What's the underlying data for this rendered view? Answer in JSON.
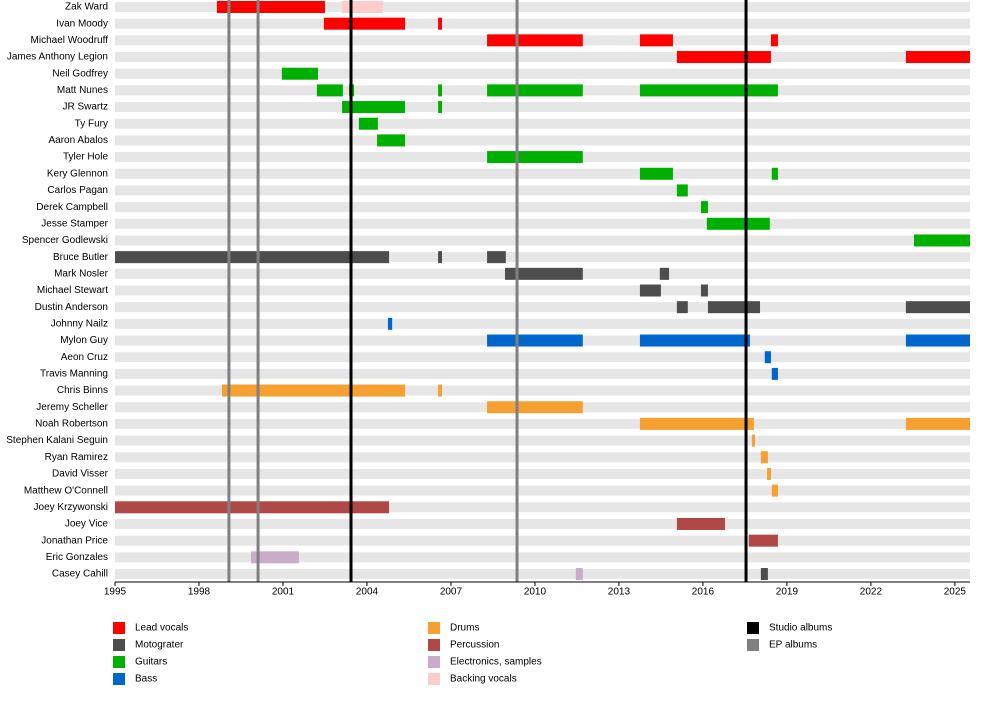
{
  "chart_data": {
    "type": "timeline",
    "xlim": [
      1995,
      2025.54
    ],
    "xticks": [
      1995,
      1998,
      2001,
      2004,
      2007,
      2010,
      2013,
      2016,
      2019,
      2022,
      2025
    ],
    "roles": [
      {
        "name": "Lead vocals",
        "color": "#ff0000"
      },
      {
        "name": "Motograter",
        "color": "#4d4d4d"
      },
      {
        "name": "Guitars",
        "color": "#00b000"
      },
      {
        "name": "Bass",
        "color": "#0066cc"
      },
      {
        "name": "Drums",
        "color": "#f5a030"
      },
      {
        "name": "Percussion",
        "color": "#b04848"
      },
      {
        "name": "Electronics, samples",
        "color": "#c8acc8"
      },
      {
        "name": "Backing vocals",
        "color": "#ffcccc"
      }
    ],
    "markers": [
      {
        "name": "Studio albums",
        "color": "#000000",
        "dates": [
          2003.43,
          2017.54
        ]
      },
      {
        "name": "EP albums",
        "color": "#808080",
        "dates": [
          1999.07,
          2000.11,
          2009.36
        ]
      }
    ],
    "members": [
      {
        "name": "Zak Ward",
        "spans": [
          {
            "role": "Lead vocals",
            "start": 1998.64,
            "end": 2002.5
          },
          {
            "role": "Backing vocals",
            "start": 2003.1,
            "end": 2004.57
          }
        ]
      },
      {
        "name": "Ivan Moody",
        "spans": [
          {
            "role": "Lead vocals",
            "start": 2002.46,
            "end": 2005.36
          },
          {
            "role": "Lead vocals",
            "start": 2006.54,
            "end": 2006.68
          }
        ]
      },
      {
        "name": "Michael Woodruff",
        "spans": [
          {
            "role": "Lead vocals",
            "start": 2008.29,
            "end": 2011.71
          },
          {
            "role": "Lead vocals",
            "start": 2013.75,
            "end": 2014.93
          },
          {
            "role": "Lead vocals",
            "start": 2018.43,
            "end": 2018.68
          }
        ]
      },
      {
        "name": "James Anthony Legion",
        "spans": [
          {
            "role": "Lead vocals",
            "start": 2015.07,
            "end": 2018.43
          },
          {
            "role": "Lead vocals",
            "start": 2023.25,
            "end": 2025.54
          }
        ]
      },
      {
        "name": "Neil Godfrey",
        "spans": [
          {
            "role": "Guitars",
            "start": 2000.96,
            "end": 2002.25
          }
        ]
      },
      {
        "name": "Matt Nunes",
        "spans": [
          {
            "role": "Guitars",
            "start": 2002.21,
            "end": 2003.14
          },
          {
            "role": "Guitars",
            "start": 2003.36,
            "end": 2003.54
          },
          {
            "role": "Guitars",
            "start": 2006.54,
            "end": 2006.68
          },
          {
            "role": "Guitars",
            "start": 2008.29,
            "end": 2011.71
          },
          {
            "role": "Guitars",
            "start": 2013.75,
            "end": 2018.68
          }
        ]
      },
      {
        "name": "JR Swartz",
        "spans": [
          {
            "role": "Guitars",
            "start": 2003.11,
            "end": 2005.36
          },
          {
            "role": "Guitars",
            "start": 2006.54,
            "end": 2006.68
          }
        ]
      },
      {
        "name": "Ty Fury",
        "spans": [
          {
            "role": "Guitars",
            "start": 2003.71,
            "end": 2004.39
          }
        ]
      },
      {
        "name": "Aaron Abalos",
        "spans": [
          {
            "role": "Guitars",
            "start": 2004.36,
            "end": 2005.36
          }
        ]
      },
      {
        "name": "Tyler Hole",
        "spans": [
          {
            "role": "Guitars",
            "start": 2008.29,
            "end": 2011.71
          }
        ]
      },
      {
        "name": "Kery Glennon",
        "spans": [
          {
            "role": "Guitars",
            "start": 2013.75,
            "end": 2014.93
          },
          {
            "role": "Guitars",
            "start": 2018.46,
            "end": 2018.68
          }
        ]
      },
      {
        "name": "Carlos Pagan",
        "spans": [
          {
            "role": "Guitars",
            "start": 2015.07,
            "end": 2015.46
          }
        ]
      },
      {
        "name": "Derek Campbell",
        "spans": [
          {
            "role": "Guitars",
            "start": 2015.93,
            "end": 2016.18
          }
        ]
      },
      {
        "name": "Jesse Stamper",
        "spans": [
          {
            "role": "Guitars",
            "start": 2016.14,
            "end": 2018.39
          }
        ]
      },
      {
        "name": "Spencer Godlewski",
        "spans": [
          {
            "role": "Guitars",
            "start": 2023.54,
            "end": 2025.54
          }
        ]
      },
      {
        "name": "Bruce Butler",
        "spans": [
          {
            "role": "Motograter",
            "start": 1995,
            "end": 2004.79
          },
          {
            "role": "Motograter",
            "start": 2006.54,
            "end": 2006.68
          },
          {
            "role": "Motograter",
            "start": 2008.29,
            "end": 2008.96
          }
        ]
      },
      {
        "name": "Mark Nosler",
        "spans": [
          {
            "role": "Motograter",
            "start": 2008.93,
            "end": 2011.71
          },
          {
            "role": "Motograter",
            "start": 2014.46,
            "end": 2014.79
          }
        ]
      },
      {
        "name": "Michael Stewart",
        "spans": [
          {
            "role": "Motograter",
            "start": 2013.75,
            "end": 2014.5
          },
          {
            "role": "Motograter",
            "start": 2015.93,
            "end": 2016.18
          }
        ]
      },
      {
        "name": "Dustin Anderson",
        "spans": [
          {
            "role": "Motograter",
            "start": 2015.07,
            "end": 2015.46
          },
          {
            "role": "Motograter",
            "start": 2016.18,
            "end": 2018.04
          },
          {
            "role": "Motograter",
            "start": 2023.25,
            "end": 2025.54
          }
        ]
      },
      {
        "name": "Johnny Nailz",
        "spans": [
          {
            "role": "Bass",
            "start": 2004.75,
            "end": 2004.9
          }
        ]
      },
      {
        "name": "Mylon Guy",
        "spans": [
          {
            "role": "Bass",
            "start": 2008.29,
            "end": 2011.71
          },
          {
            "role": "Bass",
            "start": 2013.75,
            "end": 2017.68
          },
          {
            "role": "Bass",
            "start": 2023.25,
            "end": 2025.54
          }
        ]
      },
      {
        "name": "Aeon Cruz",
        "spans": [
          {
            "role": "Bass",
            "start": 2018.21,
            "end": 2018.43
          }
        ]
      },
      {
        "name": "Travis Manning",
        "spans": [
          {
            "role": "Bass",
            "start": 2018.46,
            "end": 2018.68
          }
        ]
      },
      {
        "name": "Chris Binns",
        "spans": [
          {
            "role": "Drums",
            "start": 1998.82,
            "end": 2005.36
          },
          {
            "role": "Drums",
            "start": 2006.54,
            "end": 2006.68
          }
        ]
      },
      {
        "name": "Jeremy Scheller",
        "spans": [
          {
            "role": "Drums",
            "start": 2008.29,
            "end": 2011.71
          }
        ]
      },
      {
        "name": "Noah Robertson",
        "spans": [
          {
            "role": "Drums",
            "start": 2013.75,
            "end": 2017.82
          },
          {
            "role": "Drums",
            "start": 2023.25,
            "end": 2025.54
          }
        ]
      },
      {
        "name": "Stephen Kalani Seguin",
        "spans": [
          {
            "role": "Drums",
            "start": 2017.75,
            "end": 2017.86
          }
        ]
      },
      {
        "name": "Ryan Ramirez",
        "spans": [
          {
            "role": "Drums",
            "start": 2018.07,
            "end": 2018.32
          }
        ]
      },
      {
        "name": "David Visser",
        "spans": [
          {
            "role": "Drums",
            "start": 2018.29,
            "end": 2018.43
          }
        ]
      },
      {
        "name": "Matthew O'Connell",
        "spans": [
          {
            "role": "Drums",
            "start": 2018.46,
            "end": 2018.68
          }
        ]
      },
      {
        "name": "Joey Krzywonski",
        "spans": [
          {
            "role": "Percussion",
            "start": 1995,
            "end": 2004.79
          }
        ]
      },
      {
        "name": "Joey Vice",
        "spans": [
          {
            "role": "Percussion",
            "start": 2015.07,
            "end": 2016.79
          }
        ]
      },
      {
        "name": "Jonathan Price",
        "spans": [
          {
            "role": "Percussion",
            "start": 2017.64,
            "end": 2018.68
          }
        ]
      },
      {
        "name": "Eric Gonzales",
        "spans": [
          {
            "role": "Electronics, samples",
            "start": 1999.86,
            "end": 2001.57
          }
        ]
      },
      {
        "name": "Casey Cahill",
        "spans": [
          {
            "role": "Electronics, samples",
            "start": 2011.46,
            "end": 2011.71
          },
          {
            "role": "Motograter",
            "start": 2018.07,
            "end": 2018.32
          }
        ]
      }
    ]
  }
}
